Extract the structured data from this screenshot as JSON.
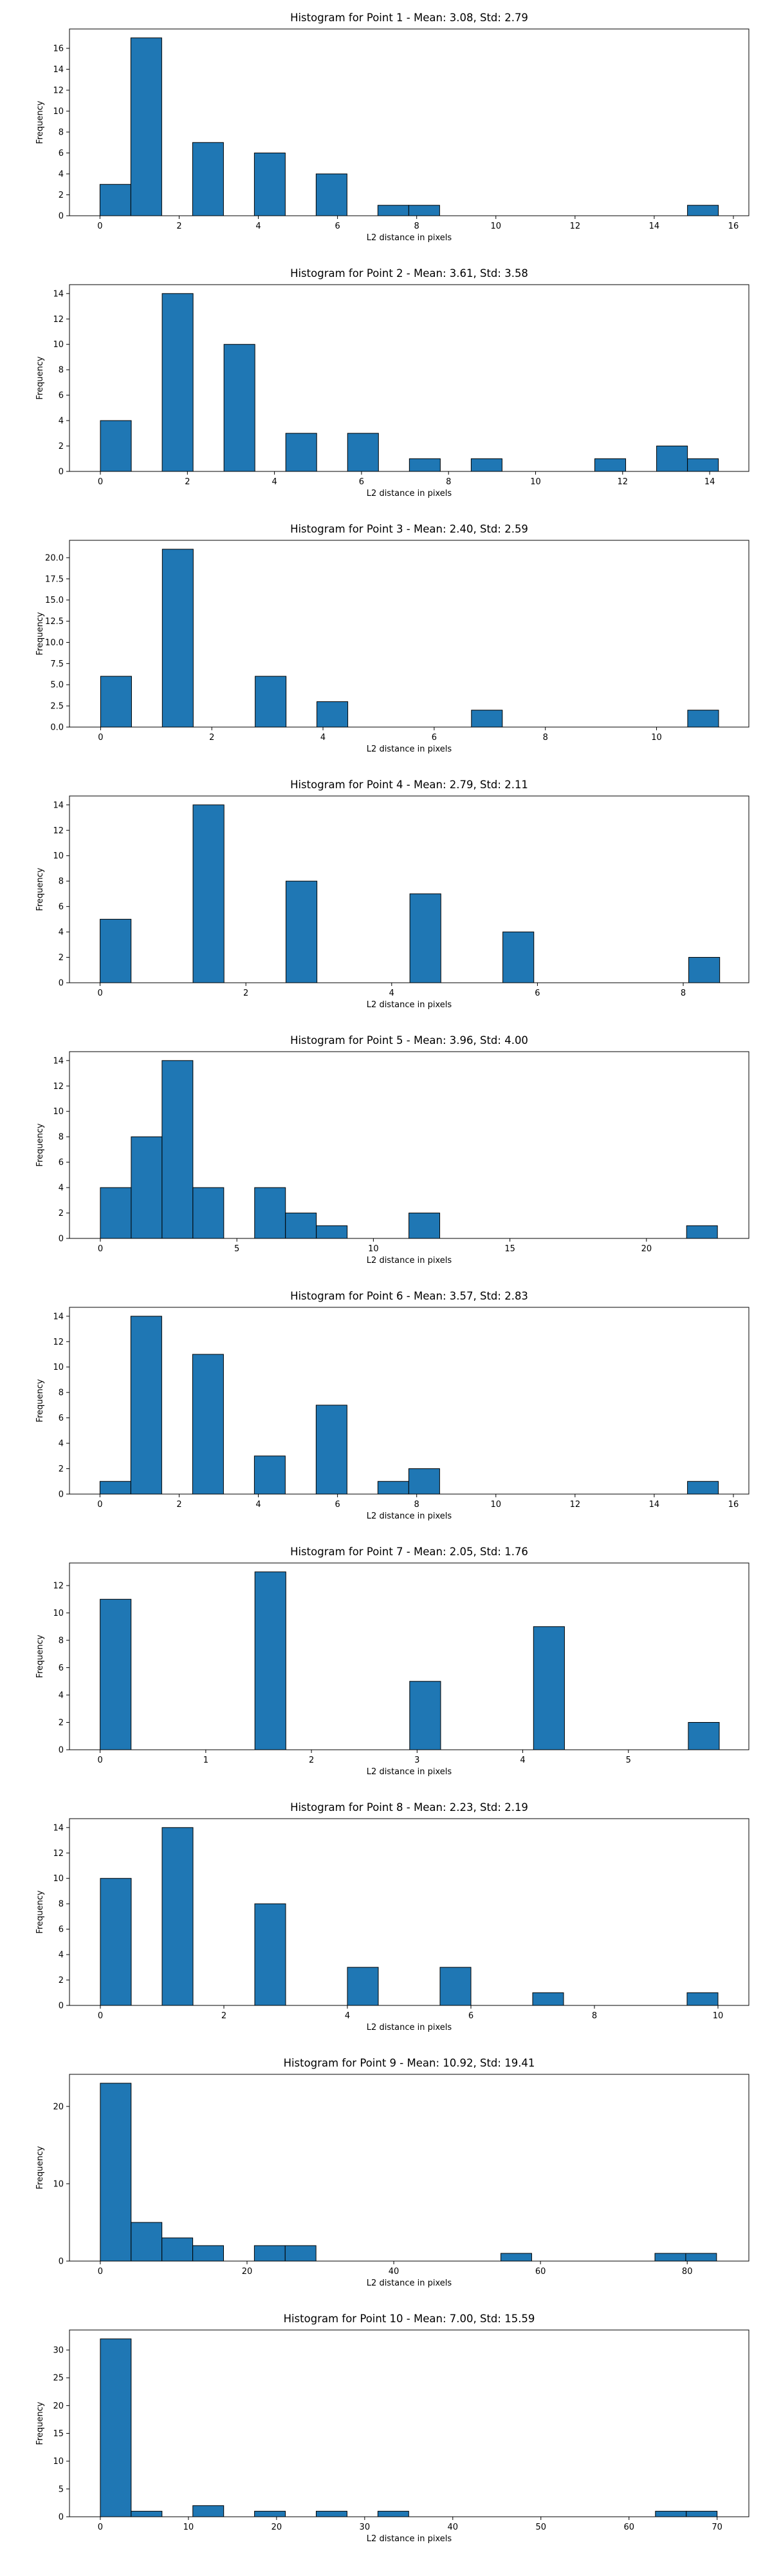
{
  "figure": {
    "bar_color": "#1f77b4",
    "edge_color": "#000000",
    "background": "#ffffff"
  },
  "chart_data": [
    {
      "type": "bar",
      "title": "Histogram for Point 1 - Mean: 3.08, Std: 2.79",
      "xlabel": "L2 distance in pixels",
      "ylabel": "Frequency",
      "xlim": [
        -0.77,
        16.39
      ],
      "ylim": [
        0,
        17.85
      ],
      "xticks": [
        0,
        2,
        4,
        6,
        8,
        10,
        12,
        14,
        16
      ],
      "yticks": [
        0,
        2,
        4,
        6,
        8,
        10,
        12,
        14,
        16
      ],
      "bin_width": 0.78,
      "bins": [
        {
          "x0": 0.0,
          "count": 3
        },
        {
          "x0": 0.78,
          "count": 17
        },
        {
          "x0": 2.34,
          "count": 7
        },
        {
          "x0": 3.9,
          "count": 6
        },
        {
          "x0": 5.46,
          "count": 4
        },
        {
          "x0": 7.02,
          "count": 1
        },
        {
          "x0": 7.8,
          "count": 1
        },
        {
          "x0": 14.84,
          "count": 1
        }
      ]
    },
    {
      "type": "bar",
      "title": "Histogram for Point 2 - Mean: 3.61, Std: 3.58",
      "xlabel": "L2 distance in pixels",
      "ylabel": "Frequency",
      "xlim": [
        -0.71,
        14.9
      ],
      "ylim": [
        0,
        14.7
      ],
      "xticks": [
        0,
        2,
        4,
        6,
        8,
        10,
        12,
        14
      ],
      "yticks": [
        0,
        2,
        4,
        6,
        8,
        10,
        12,
        14
      ],
      "bin_width": 0.71,
      "bins": [
        {
          "x0": 0.0,
          "count": 4
        },
        {
          "x0": 1.42,
          "count": 14
        },
        {
          "x0": 2.84,
          "count": 10
        },
        {
          "x0": 4.26,
          "count": 3
        },
        {
          "x0": 5.68,
          "count": 3
        },
        {
          "x0": 7.1,
          "count": 1
        },
        {
          "x0": 8.52,
          "count": 1
        },
        {
          "x0": 11.36,
          "count": 1
        },
        {
          "x0": 12.78,
          "count": 2
        },
        {
          "x0": 13.49,
          "count": 1
        }
      ]
    },
    {
      "type": "bar",
      "title": "Histogram for Point 3 - Mean: 2.40, Std: 2.59",
      "xlabel": "L2 distance in pixels",
      "ylabel": "Frequency",
      "xlim": [
        -0.56,
        11.66
      ],
      "ylim": [
        0,
        22.05
      ],
      "xticks": [
        0,
        2,
        4,
        6,
        8,
        10
      ],
      "yticks": [
        0.0,
        2.5,
        5.0,
        7.5,
        10.0,
        12.5,
        15.0,
        17.5,
        20.0
      ],
      "ytick_labels": [
        "0.0",
        "2.5",
        "5.0",
        "7.5",
        "10.0",
        "12.5",
        "15.0",
        "17.5",
        "20.0"
      ],
      "bin_width": 0.556,
      "bins": [
        {
          "x0": 0.0,
          "count": 6
        },
        {
          "x0": 1.11,
          "count": 21
        },
        {
          "x0": 2.78,
          "count": 6
        },
        {
          "x0": 3.89,
          "count": 3
        },
        {
          "x0": 6.67,
          "count": 2
        },
        {
          "x0": 10.56,
          "count": 2
        }
      ]
    },
    {
      "type": "bar",
      "title": "Histogram for Point 4 - Mean: 2.79, Std: 2.11",
      "xlabel": "L2 distance in pixels",
      "ylabel": "Frequency",
      "xlim": [
        -0.42,
        8.9
      ],
      "ylim": [
        0,
        14.7
      ],
      "xticks": [
        0,
        2,
        4,
        6,
        8
      ],
      "yticks": [
        0,
        2,
        4,
        6,
        8,
        10,
        12,
        14
      ],
      "bin_width": 0.425,
      "bins": [
        {
          "x0": 0.0,
          "count": 5
        },
        {
          "x0": 1.275,
          "count": 14
        },
        {
          "x0": 2.55,
          "count": 8
        },
        {
          "x0": 4.25,
          "count": 7
        },
        {
          "x0": 5.525,
          "count": 4
        },
        {
          "x0": 8.075,
          "count": 2
        }
      ]
    },
    {
      "type": "bar",
      "title": "Histogram for Point 5 - Mean: 3.96, Std: 4.00",
      "xlabel": "L2 distance in pixels",
      "ylabel": "Frequency",
      "xlim": [
        -1.13,
        23.75
      ],
      "ylim": [
        0,
        14.7
      ],
      "xticks": [
        0,
        5,
        10,
        15,
        20
      ],
      "yticks": [
        0,
        2,
        4,
        6,
        8,
        10,
        12,
        14
      ],
      "bin_width": 1.13,
      "bins": [
        {
          "x0": 0.0,
          "count": 4
        },
        {
          "x0": 1.13,
          "count": 8
        },
        {
          "x0": 2.26,
          "count": 14
        },
        {
          "x0": 3.39,
          "count": 4
        },
        {
          "x0": 5.65,
          "count": 4
        },
        {
          "x0": 6.78,
          "count": 2
        },
        {
          "x0": 7.91,
          "count": 1
        },
        {
          "x0": 11.3,
          "count": 2
        },
        {
          "x0": 21.47,
          "count": 1
        }
      ]
    },
    {
      "type": "bar",
      "title": "Histogram for Point 6 - Mean: 3.57, Std: 2.83",
      "xlabel": "L2 distance in pixels",
      "ylabel": "Frequency",
      "xlim": [
        -0.77,
        16.39
      ],
      "ylim": [
        0,
        14.7
      ],
      "xticks": [
        0,
        2,
        4,
        6,
        8,
        10,
        12,
        14,
        16
      ],
      "yticks": [
        0,
        2,
        4,
        6,
        8,
        10,
        12,
        14
      ],
      "bin_width": 0.78,
      "bins": [
        {
          "x0": 0.0,
          "count": 1
        },
        {
          "x0": 0.78,
          "count": 14
        },
        {
          "x0": 2.34,
          "count": 11
        },
        {
          "x0": 3.9,
          "count": 3
        },
        {
          "x0": 5.46,
          "count": 7
        },
        {
          "x0": 7.02,
          "count": 1
        },
        {
          "x0": 7.8,
          "count": 2
        },
        {
          "x0": 14.84,
          "count": 1
        }
      ]
    },
    {
      "type": "bar",
      "title": "Histogram for Point 7 - Mean: 2.05, Std: 1.76",
      "xlabel": "L2 distance in pixels",
      "ylabel": "Frequency",
      "xlim": [
        -0.29,
        6.14
      ],
      "ylim": [
        0,
        13.65
      ],
      "xticks": [
        0,
        1,
        2,
        3,
        4,
        5
      ],
      "yticks": [
        0,
        2,
        4,
        6,
        8,
        10,
        12
      ],
      "bin_width": 0.293,
      "bins": [
        {
          "x0": 0.0,
          "count": 11
        },
        {
          "x0": 1.465,
          "count": 13
        },
        {
          "x0": 2.93,
          "count": 5
        },
        {
          "x0": 4.102,
          "count": 9
        },
        {
          "x0": 5.567,
          "count": 2
        }
      ]
    },
    {
      "type": "bar",
      "title": "Histogram for Point 8 - Mean: 2.23, Std: 2.19",
      "xlabel": "L2 distance in pixels",
      "ylabel": "Frequency",
      "xlim": [
        -0.5,
        10.5
      ],
      "ylim": [
        0,
        14.7
      ],
      "xticks": [
        0,
        2,
        4,
        6,
        8,
        10
      ],
      "yticks": [
        0,
        2,
        4,
        6,
        8,
        10,
        12,
        14
      ],
      "bin_width": 0.5,
      "bins": [
        {
          "x0": 0.0,
          "count": 10
        },
        {
          "x0": 1.0,
          "count": 14
        },
        {
          "x0": 2.5,
          "count": 8
        },
        {
          "x0": 4.0,
          "count": 3
        },
        {
          "x0": 5.5,
          "count": 3
        },
        {
          "x0": 7.0,
          "count": 1
        },
        {
          "x0": 9.5,
          "count": 1
        }
      ]
    },
    {
      "type": "bar",
      "title": "Histogram for Point 9 - Mean: 10.92, Std: 19.41",
      "xlabel": "L2 distance in pixels",
      "ylabel": "Frequency",
      "xlim": [
        -4.2,
        88.4
      ],
      "ylim": [
        0,
        24.15
      ],
      "xticks": [
        0,
        20,
        40,
        60,
        80
      ],
      "yticks": [
        0,
        10,
        20
      ],
      "bin_width": 4.2,
      "bins": [
        {
          "x0": 0.0,
          "count": 23
        },
        {
          "x0": 4.2,
          "count": 5
        },
        {
          "x0": 8.4,
          "count": 3
        },
        {
          "x0": 12.6,
          "count": 2
        },
        {
          "x0": 21.0,
          "count": 2
        },
        {
          "x0": 25.2,
          "count": 2
        },
        {
          "x0": 54.6,
          "count": 1
        },
        {
          "x0": 75.6,
          "count": 1
        },
        {
          "x0": 79.8,
          "count": 1
        }
      ]
    },
    {
      "type": "bar",
      "title": "Histogram for Point 10 - Mean: 7.00, Std: 15.59",
      "xlabel": "L2 distance in pixels",
      "ylabel": "Frequency",
      "xlim": [
        -3.5,
        73.6
      ],
      "ylim": [
        0,
        33.6
      ],
      "xticks": [
        0,
        10,
        20,
        30,
        40,
        50,
        60,
        70
      ],
      "yticks": [
        0,
        5,
        10,
        15,
        20,
        25,
        30
      ],
      "bin_width": 3.5,
      "bins": [
        {
          "x0": 0.0,
          "count": 32
        },
        {
          "x0": 3.5,
          "count": 1
        },
        {
          "x0": 10.5,
          "count": 2
        },
        {
          "x0": 17.5,
          "count": 1
        },
        {
          "x0": 24.5,
          "count": 1
        },
        {
          "x0": 31.5,
          "count": 1
        },
        {
          "x0": 63.0,
          "count": 1
        },
        {
          "x0": 66.5,
          "count": 1
        }
      ]
    }
  ]
}
